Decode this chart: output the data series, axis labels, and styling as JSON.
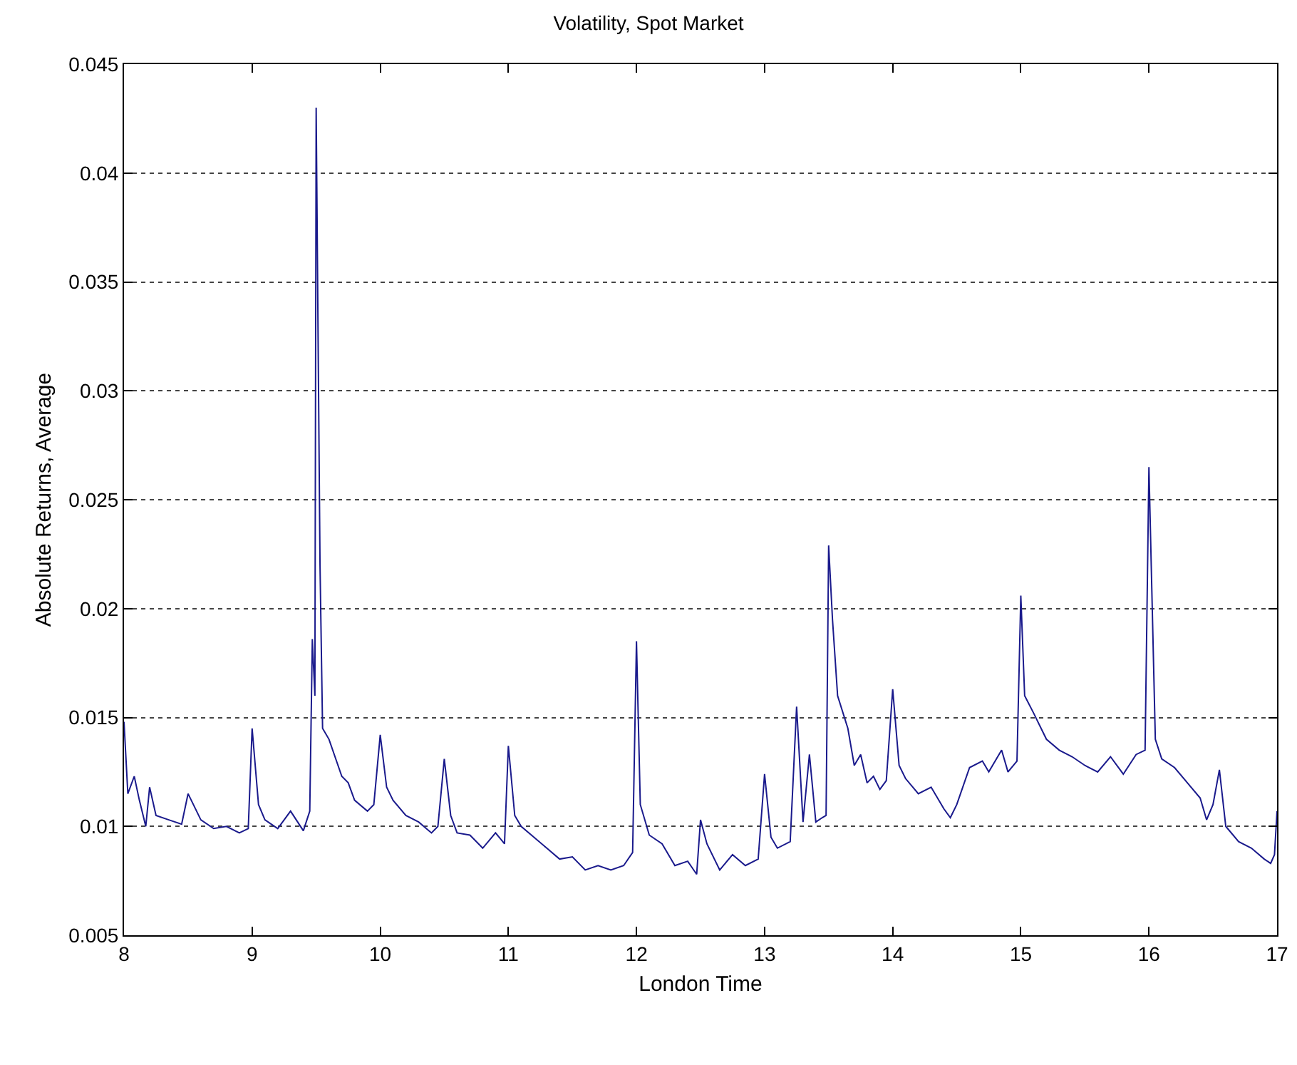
{
  "chart_data": {
    "type": "line",
    "title": "Volatility, Spot Market",
    "xlabel": "London Time",
    "ylabel": "Absolute Returns, Average",
    "x": [
      8.0,
      8.03,
      8.08,
      8.12,
      8.17,
      8.2,
      8.25,
      8.35,
      8.45,
      8.5,
      8.6,
      8.7,
      8.8,
      8.9,
      8.97,
      9.0,
      9.05,
      9.1,
      9.2,
      9.3,
      9.4,
      9.45,
      9.47,
      9.49,
      9.5,
      9.51,
      9.53,
      9.55,
      9.6,
      9.7,
      9.75,
      9.8,
      9.9,
      9.95,
      10.0,
      10.05,
      10.1,
      10.2,
      10.3,
      10.4,
      10.45,
      10.5,
      10.55,
      10.6,
      10.7,
      10.8,
      10.9,
      10.97,
      11.0,
      11.05,
      11.1,
      11.2,
      11.3,
      11.4,
      11.5,
      11.6,
      11.7,
      11.8,
      11.9,
      11.97,
      12.0,
      12.03,
      12.1,
      12.2,
      12.3,
      12.4,
      12.47,
      12.5,
      12.55,
      12.65,
      12.75,
      12.85,
      12.95,
      13.0,
      13.05,
      13.1,
      13.2,
      13.25,
      13.3,
      13.35,
      13.4,
      13.45,
      13.48,
      13.5,
      13.53,
      13.57,
      13.65,
      13.7,
      13.75,
      13.8,
      13.85,
      13.9,
      13.95,
      14.0,
      14.05,
      14.1,
      14.2,
      14.3,
      14.4,
      14.45,
      14.5,
      14.6,
      14.7,
      14.75,
      14.85,
      14.9,
      14.97,
      15.0,
      15.03,
      15.1,
      15.2,
      15.3,
      15.4,
      15.5,
      15.6,
      15.7,
      15.8,
      15.9,
      15.97,
      16.0,
      16.05,
      16.1,
      16.2,
      16.3,
      16.4,
      16.45,
      16.5,
      16.55,
      16.6,
      16.7,
      16.8,
      16.9,
      16.95,
      16.98,
      17.0
    ],
    "series": [
      {
        "color": "#1a1a8c",
        "values": [
          0.0148,
          0.0115,
          0.0123,
          0.0112,
          0.01,
          0.0118,
          0.0105,
          0.0103,
          0.0101,
          0.0115,
          0.0103,
          0.0099,
          0.01,
          0.0097,
          0.0099,
          0.0145,
          0.011,
          0.0103,
          0.0099,
          0.0107,
          0.0098,
          0.0107,
          0.0186,
          0.016,
          0.043,
          0.036,
          0.022,
          0.0145,
          0.014,
          0.0123,
          0.012,
          0.0112,
          0.0107,
          0.011,
          0.0142,
          0.0118,
          0.0112,
          0.0105,
          0.0102,
          0.0097,
          0.01,
          0.0131,
          0.0105,
          0.0097,
          0.0096,
          0.009,
          0.0097,
          0.0092,
          0.0137,
          0.0105,
          0.01,
          0.0095,
          0.009,
          0.0085,
          0.0086,
          0.008,
          0.0082,
          0.008,
          0.0082,
          0.0088,
          0.0185,
          0.011,
          0.0096,
          0.0092,
          0.0082,
          0.0084,
          0.0078,
          0.0103,
          0.0092,
          0.008,
          0.0087,
          0.0082,
          0.0085,
          0.0124,
          0.0095,
          0.009,
          0.0093,
          0.0155,
          0.0102,
          0.0133,
          0.0102,
          0.0104,
          0.0105,
          0.0229,
          0.0195,
          0.016,
          0.0145,
          0.0128,
          0.0133,
          0.012,
          0.0123,
          0.0117,
          0.0121,
          0.0163,
          0.0128,
          0.0122,
          0.0115,
          0.0118,
          0.0108,
          0.0104,
          0.011,
          0.0127,
          0.013,
          0.0125,
          0.0135,
          0.0125,
          0.013,
          0.0206,
          0.016,
          0.0152,
          0.014,
          0.0135,
          0.0132,
          0.0128,
          0.0125,
          0.0132,
          0.0124,
          0.0133,
          0.0135,
          0.0265,
          0.014,
          0.0131,
          0.0127,
          0.012,
          0.0113,
          0.0103,
          0.011,
          0.0126,
          0.01,
          0.0093,
          0.009,
          0.0085,
          0.0083,
          0.0087,
          0.0107
        ]
      }
    ],
    "xlim": [
      8,
      17
    ],
    "xticks": [
      8,
      9,
      10,
      11,
      12,
      13,
      14,
      15,
      16,
      17
    ],
    "ylim": [
      0.005,
      0.045
    ],
    "yticks": [
      0.005,
      0.01,
      0.015,
      0.02,
      0.025,
      0.03,
      0.035,
      0.04,
      0.045
    ],
    "grid": "y",
    "marker": "none",
    "line_style": "solid"
  }
}
